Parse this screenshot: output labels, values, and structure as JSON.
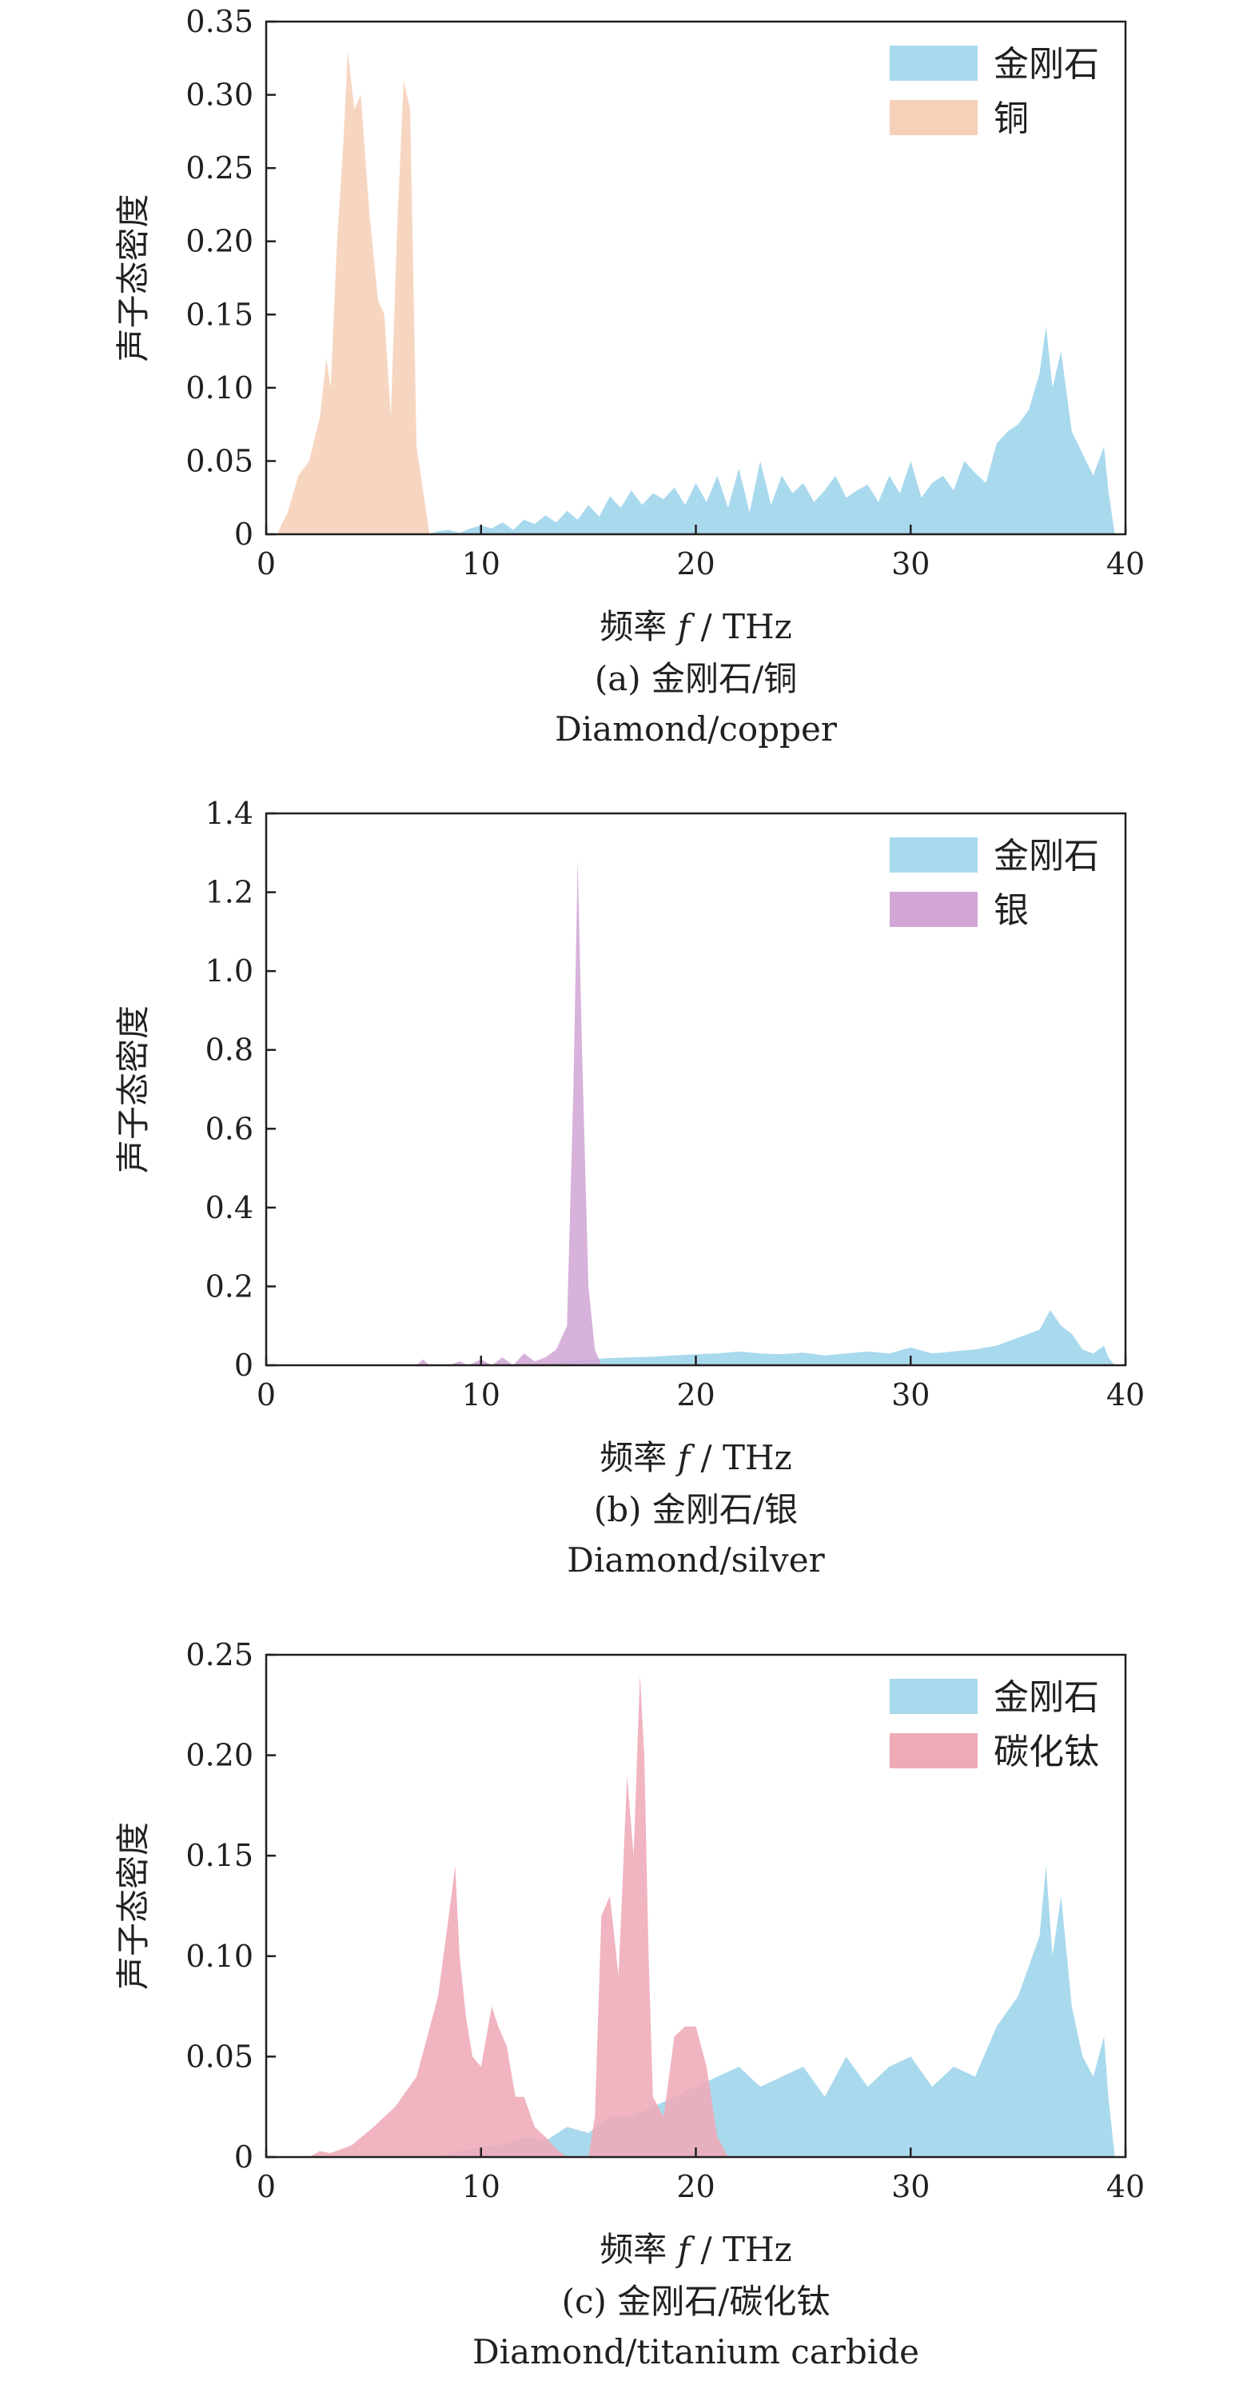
{
  "colors": {
    "diamond": "#a9d9ed",
    "copper": "#f6d0b8",
    "silver": "#d2a7d6",
    "titanium_carbide": "#efaab8",
    "axis": "#231f20"
  },
  "chart_data": [
    {
      "type": "area",
      "panel": "a",
      "caption_cn": "(a) 金刚石/铜",
      "caption_en": "Diamond/copper",
      "ylabel": "声子态密度",
      "xlabel_prefix": "频率 ",
      "xlabel_var": "f",
      "xlabel_unit": " / THz",
      "xlim": [
        0,
        40
      ],
      "ylim": [
        0,
        0.35
      ],
      "xticks": [
        "0",
        "10",
        "20",
        "30",
        "40"
      ],
      "yticks": [
        "0",
        "0.05",
        "0.10",
        "0.15",
        "0.20",
        "0.25",
        "0.30",
        "0.35"
      ],
      "grid": false,
      "legend_position": "top-right",
      "series": [
        {
          "name": "金刚石",
          "color_key": "diamond",
          "x": [
            7.5,
            8,
            8.5,
            9,
            9.5,
            10,
            10.5,
            11,
            11.5,
            12,
            12.5,
            13,
            13.5,
            14,
            14.5,
            15,
            15.5,
            16,
            16.5,
            17,
            17.5,
            18,
            18.5,
            19,
            19.5,
            20,
            20.5,
            21,
            21.5,
            22,
            22.5,
            23,
            23.5,
            24,
            24.5,
            25,
            25.5,
            26,
            26.5,
            27,
            27.5,
            28,
            28.5,
            29,
            29.5,
            30,
            30.5,
            31,
            31.5,
            32,
            32.5,
            33,
            33.5,
            34,
            34.5,
            35,
            35.5,
            36,
            36.3,
            36.6,
            37,
            37.5,
            38,
            38.5,
            39,
            39.2,
            39.5
          ],
          "y": [
            0,
            0.002,
            0.003,
            0.001,
            0.004,
            0.006,
            0.004,
            0.008,
            0.003,
            0.01,
            0.007,
            0.013,
            0.008,
            0.016,
            0.01,
            0.02,
            0.012,
            0.026,
            0.018,
            0.03,
            0.02,
            0.028,
            0.024,
            0.032,
            0.02,
            0.035,
            0.022,
            0.04,
            0.018,
            0.045,
            0.015,
            0.05,
            0.02,
            0.04,
            0.028,
            0.035,
            0.022,
            0.03,
            0.04,
            0.025,
            0.03,
            0.034,
            0.022,
            0.04,
            0.028,
            0.05,
            0.025,
            0.035,
            0.04,
            0.03,
            0.05,
            0.042,
            0.035,
            0.062,
            0.07,
            0.075,
            0.085,
            0.11,
            0.142,
            0.1,
            0.125,
            0.07,
            0.055,
            0.04,
            0.06,
            0.03,
            0
          ]
        },
        {
          "name": "铜",
          "color_key": "copper",
          "x": [
            0.5,
            1,
            1.5,
            2,
            2.5,
            2.8,
            3,
            3.3,
            3.6,
            3.8,
            4.1,
            4.4,
            4.8,
            5.2,
            5.5,
            5.8,
            6.1,
            6.4,
            6.7,
            7,
            7.3,
            7.6
          ],
          "y": [
            0,
            0.015,
            0.04,
            0.05,
            0.08,
            0.12,
            0.1,
            0.2,
            0.27,
            0.33,
            0.29,
            0.3,
            0.22,
            0.16,
            0.15,
            0.08,
            0.21,
            0.31,
            0.29,
            0.06,
            0.03,
            0
          ]
        }
      ]
    },
    {
      "type": "area",
      "panel": "b",
      "caption_cn": "(b) 金刚石/银",
      "caption_en": "Diamond/silver",
      "ylabel": "声子态密度",
      "xlabel_prefix": "频率 ",
      "xlabel_var": "f",
      "xlabel_unit": " / THz",
      "xlim": [
        0,
        40
      ],
      "ylim": [
        0,
        1.4
      ],
      "xticks": [
        "0",
        "10",
        "20",
        "30",
        "40"
      ],
      "yticks": [
        "0",
        "0.2",
        "0.4",
        "0.6",
        "0.8",
        "1.0",
        "1.2",
        "1.4"
      ],
      "grid": false,
      "legend_position": "top-right",
      "series": [
        {
          "name": "金刚石",
          "color_key": "diamond",
          "x": [
            13,
            14,
            15,
            16,
            17,
            18,
            19,
            20,
            21,
            22,
            23,
            24,
            25,
            26,
            27,
            28,
            29,
            30,
            31,
            32,
            33,
            34,
            35,
            36,
            36.5,
            37,
            37.5,
            38,
            38.5,
            39,
            39.2,
            39.5
          ],
          "y": [
            0,
            0.01,
            0.015,
            0.018,
            0.02,
            0.022,
            0.025,
            0.028,
            0.03,
            0.035,
            0.03,
            0.028,
            0.032,
            0.025,
            0.03,
            0.035,
            0.03,
            0.045,
            0.03,
            0.035,
            0.04,
            0.05,
            0.07,
            0.09,
            0.14,
            0.1,
            0.08,
            0.04,
            0.03,
            0.05,
            0.02,
            0
          ]
        },
        {
          "name": "银",
          "color_key": "silver",
          "x": [
            7,
            7.3,
            7.6,
            8.5,
            9,
            9.4,
            10,
            10.5,
            11,
            11.5,
            12,
            12.5,
            13,
            13.5,
            14,
            14.3,
            14.5,
            14.7,
            15,
            15.3,
            15.6
          ],
          "y": [
            0,
            0.015,
            0,
            0,
            0.01,
            0,
            0.015,
            0,
            0.02,
            0,
            0.03,
            0.01,
            0.02,
            0.04,
            0.1,
            0.7,
            1.28,
            0.8,
            0.2,
            0.04,
            0
          ]
        }
      ]
    },
    {
      "type": "area",
      "panel": "c",
      "caption_cn": "(c) 金刚石/碳化钛",
      "caption_en": "Diamond/titanium carbide",
      "ylabel": "声子态密度",
      "xlabel_prefix": "频率 ",
      "xlabel_var": "f",
      "xlabel_unit": " / THz",
      "xlim": [
        0,
        40
      ],
      "ylim": [
        0,
        0.25
      ],
      "xticks": [
        "0",
        "10",
        "20",
        "30",
        "40"
      ],
      "yticks": [
        "0",
        "0.05",
        "0.10",
        "0.15",
        "0.20",
        "0.25"
      ],
      "grid": false,
      "legend_position": "top-right",
      "series": [
        {
          "name": "金刚石",
          "color_key": "diamond",
          "x": [
            8,
            9,
            10,
            11,
            12,
            13,
            14,
            15,
            16,
            17,
            18,
            19,
            20,
            21,
            22,
            23,
            24,
            25,
            26,
            27,
            28,
            29,
            30,
            31,
            32,
            33,
            34,
            35,
            36,
            36.3,
            36.6,
            37,
            37.5,
            38,
            38.5,
            39,
            39.2,
            39.5
          ],
          "y": [
            0,
            0.003,
            0.005,
            0.006,
            0.01,
            0.008,
            0.015,
            0.012,
            0.02,
            0.02,
            0.025,
            0.03,
            0.035,
            0.04,
            0.045,
            0.035,
            0.04,
            0.045,
            0.03,
            0.05,
            0.035,
            0.045,
            0.05,
            0.035,
            0.045,
            0.04,
            0.065,
            0.08,
            0.11,
            0.145,
            0.1,
            0.13,
            0.075,
            0.05,
            0.04,
            0.06,
            0.03,
            0
          ]
        },
        {
          "name": "碳化钛",
          "color_key": "titanium_carbide",
          "x": [
            2,
            2.5,
            3,
            3.5,
            4,
            5,
            6,
            7,
            7.5,
            8,
            8.5,
            8.8,
            9,
            9.3,
            9.6,
            10,
            10.5,
            10.8,
            11.2,
            11.6,
            12,
            12.5,
            13,
            13.5,
            14,
            14.5,
            15,
            15.3,
            15.6,
            16,
            16.4,
            16.8,
            17.1,
            17.4,
            17.6,
            17.8,
            18,
            18.5,
            19,
            19.5,
            20,
            20.5,
            21,
            21.5,
            22
          ],
          "y": [
            0,
            0.003,
            0.002,
            0.004,
            0.006,
            0.015,
            0.025,
            0.04,
            0.06,
            0.08,
            0.12,
            0.145,
            0.1,
            0.07,
            0.05,
            0.045,
            0.075,
            0.065,
            0.055,
            0.03,
            0.03,
            0.015,
            0.01,
            0.004,
            0,
            0,
            0,
            0.02,
            0.12,
            0.13,
            0.09,
            0.19,
            0.15,
            0.24,
            0.2,
            0.1,
            0.03,
            0.02,
            0.06,
            0.065,
            0.065,
            0.045,
            0.01,
            0,
            0
          ]
        }
      ]
    }
  ]
}
